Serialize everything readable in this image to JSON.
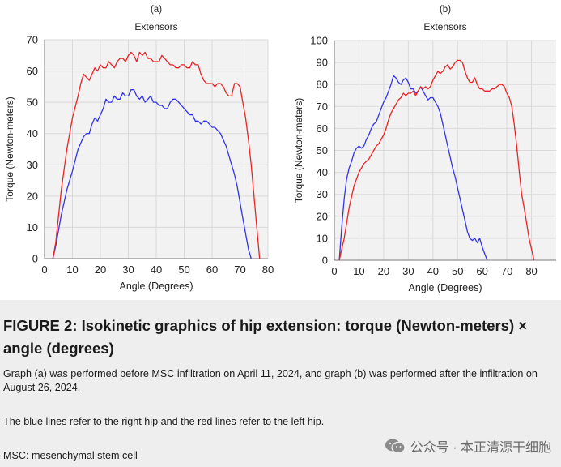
{
  "chart_data": [
    {
      "type": "line",
      "panel_label": "(a)",
      "title": "Extensors",
      "xlabel": "Angle (Degrees)",
      "ylabel": "Torque (Newton-meters)",
      "xlim": [
        0,
        80
      ],
      "ylim": [
        0,
        70
      ],
      "xticks": [
        0,
        10,
        20,
        30,
        40,
        50,
        60,
        70,
        80
      ],
      "yticks": [
        0,
        10,
        20,
        30,
        40,
        50,
        60,
        70
      ],
      "grid": true,
      "series": [
        {
          "name": "Right hip",
          "color": "#3333ee",
          "x": [
            3,
            4,
            6,
            8,
            10,
            12,
            14,
            15,
            16,
            17,
            18,
            19,
            20,
            21,
            22,
            23,
            24,
            25,
            26,
            27,
            28,
            29,
            30,
            31,
            32,
            33,
            34,
            35,
            36,
            37,
            38,
            39,
            40,
            41,
            42,
            43,
            44,
            45,
            46,
            47,
            48,
            49,
            50,
            51,
            52,
            53,
            54,
            55,
            56,
            57,
            58,
            59,
            60,
            61,
            62,
            63,
            64,
            65,
            66,
            67,
            68,
            69,
            70,
            71,
            72,
            73,
            74
          ],
          "y": [
            0,
            4,
            14,
            22,
            28,
            35,
            39,
            40,
            40,
            43,
            45,
            44,
            46,
            48,
            51,
            50,
            50,
            52,
            51,
            51,
            53,
            52,
            52,
            54,
            54,
            52,
            51,
            52,
            50,
            51,
            52,
            50,
            50,
            49,
            49,
            48,
            48,
            50,
            51,
            51,
            50,
            49,
            48,
            47,
            46,
            46,
            44,
            44,
            43,
            44,
            44,
            43,
            42,
            42,
            41,
            40,
            38,
            36,
            33,
            30,
            27,
            23,
            18,
            13,
            8,
            3,
            0
          ]
        },
        {
          "name": "Left hip",
          "color": "#ee2222",
          "x": [
            3,
            4,
            6,
            8,
            10,
            12,
            13,
            14,
            15,
            16,
            17,
            18,
            19,
            20,
            21,
            22,
            23,
            24,
            25,
            26,
            27,
            28,
            29,
            30,
            31,
            32,
            33,
            34,
            35,
            36,
            37,
            38,
            39,
            40,
            41,
            42,
            43,
            44,
            45,
            46,
            47,
            48,
            49,
            50,
            51,
            52,
            53,
            54,
            55,
            56,
            57,
            58,
            59,
            60,
            61,
            62,
            63,
            64,
            65,
            66,
            67,
            68,
            69,
            70,
            71,
            72,
            73,
            74,
            75,
            76,
            77
          ],
          "y": [
            0,
            5,
            22,
            35,
            45,
            52,
            56,
            59,
            58,
            57,
            59,
            61,
            60,
            62,
            61,
            61,
            63,
            62,
            61,
            63,
            64,
            64,
            63,
            65,
            66,
            65,
            63,
            66,
            65,
            66,
            64,
            64,
            63,
            63,
            63,
            65,
            64,
            63,
            62,
            62,
            61,
            61,
            62,
            62,
            61,
            61,
            63,
            62,
            62,
            59,
            57,
            56,
            56,
            56,
            55,
            56,
            56,
            55,
            53,
            52,
            52,
            56,
            56,
            55,
            50,
            45,
            38,
            30,
            20,
            10,
            0
          ]
        }
      ]
    },
    {
      "type": "line",
      "panel_label": "(b)",
      "title": "Extensors",
      "xlabel": "Angle (Degrees)",
      "ylabel": "Torque (Newton-meters)",
      "xlim": [
        0,
        90
      ],
      "ylim": [
        0,
        100
      ],
      "xticks": [
        0,
        10,
        20,
        30,
        40,
        50,
        60,
        70,
        80
      ],
      "yticks": [
        0,
        10,
        20,
        30,
        40,
        50,
        60,
        70,
        80,
        90,
        100
      ],
      "grid": true,
      "series": [
        {
          "name": "Right hip",
          "color": "#3333ee",
          "x": [
            2,
            3,
            4,
            5,
            6,
            7,
            8,
            9,
            10,
            11,
            12,
            13,
            14,
            15,
            16,
            17,
            18,
            19,
            20,
            21,
            22,
            23,
            24,
            25,
            26,
            27,
            28,
            29,
            30,
            31,
            32,
            33,
            34,
            35,
            36,
            37,
            38,
            39,
            40,
            41,
            42,
            43,
            44,
            45,
            46,
            47,
            48,
            49,
            50,
            51,
            52,
            53,
            54,
            55,
            56,
            57,
            58,
            59,
            60,
            61,
            62
          ],
          "y": [
            0,
            15,
            28,
            37,
            42,
            45,
            49,
            51,
            52,
            51,
            52,
            55,
            57,
            60,
            62,
            63,
            66,
            69,
            72,
            74,
            77,
            80,
            84,
            83,
            81,
            80,
            82,
            83,
            81,
            78,
            78,
            76,
            77,
            79,
            77,
            75,
            73,
            74,
            74,
            72,
            70,
            67,
            62,
            57,
            52,
            47,
            42,
            38,
            33,
            28,
            23,
            18,
            13,
            10,
            9,
            10,
            8,
            10,
            6,
            3,
            0
          ]
        },
        {
          "name": "Left hip",
          "color": "#ee2222",
          "x": [
            2,
            4,
            6,
            8,
            10,
            12,
            14,
            16,
            17,
            18,
            19,
            20,
            21,
            22,
            23,
            24,
            25,
            26,
            27,
            28,
            29,
            30,
            31,
            32,
            33,
            34,
            35,
            36,
            37,
            38,
            39,
            40,
            41,
            42,
            43,
            44,
            45,
            46,
            47,
            48,
            49,
            50,
            51,
            52,
            53,
            54,
            55,
            56,
            57,
            58,
            59,
            60,
            61,
            62,
            63,
            64,
            65,
            66,
            67,
            68,
            69,
            70,
            71,
            72,
            73,
            74,
            75,
            76,
            77,
            78,
            79,
            80,
            81
          ],
          "y": [
            0,
            10,
            24,
            34,
            40,
            44,
            46,
            50,
            52,
            53,
            55,
            57,
            60,
            64,
            67,
            69,
            71,
            73,
            74,
            76,
            75,
            76,
            76,
            77,
            75,
            77,
            79,
            78,
            79,
            78,
            79,
            82,
            84,
            86,
            85,
            86,
            88,
            89,
            87,
            88,
            90,
            91,
            91,
            90,
            86,
            83,
            81,
            81,
            83,
            80,
            78,
            78,
            77,
            77,
            77,
            78,
            78,
            79,
            80,
            80,
            79,
            76,
            74,
            70,
            62,
            52,
            41,
            30,
            24,
            17,
            10,
            5,
            0
          ]
        }
      ]
    }
  ],
  "caption": {
    "title": "FIGURE 2: Isokinetic graphics of hip extension: torque (Newton-meters) × angle (degrees)",
    "line1": "Graph (a) was performed before MSC infiltration on April 11, 2024, and graph (b) was performed after the infiltration on August 26, 2024.",
    "line2": "The blue lines refer to the right hip and the red lines refer to the left hip.",
    "line3": "MSC: mesenchymal stem cell"
  },
  "watermark": {
    "text": "公众号 · 本正清源干细胞",
    "icon": "wechat-icon"
  },
  "colors": {
    "right_hip": "#3333ee",
    "left_hip": "#ee2222",
    "plot_bg": "#f2f2f2",
    "grid": "#d9d9d9",
    "caption_bg": "#eeeeee"
  }
}
